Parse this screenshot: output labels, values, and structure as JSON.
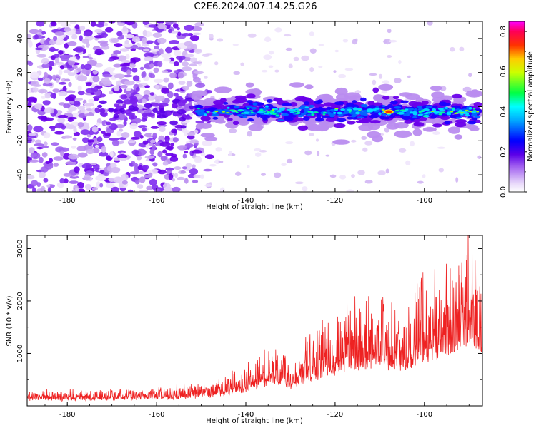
{
  "title": "C2E6.2024.007.14.25.G26",
  "chart_data": [
    {
      "type": "heatmap",
      "name": "spectrogram",
      "xlabel": "Height of straight line (km)",
      "ylabel": "Frequency (Hz)",
      "xlim": [
        -189,
        -87
      ],
      "ylim": [
        -50,
        50
      ],
      "x_ticks": [
        -180,
        -160,
        -140,
        -120,
        -100
      ],
      "x_tick_labels": [
        "-180",
        "-160",
        "-140",
        "-120",
        "-100"
      ],
      "y_ticks": [
        -40,
        -20,
        0,
        20,
        40
      ],
      "y_tick_labels": [
        "-40",
        "-20",
        "0",
        "20",
        "40"
      ],
      "colorbar": {
        "label": "Normalized spectral amplitude",
        "range": [
          0,
          0.85
        ],
        "ticks": [
          0,
          0.2,
          0.4,
          0.6,
          0.8
        ],
        "tick_labels": [
          "0.0",
          "0.2",
          "0.4",
          "0.6",
          "0.8"
        ],
        "colors": [
          "#ffffff",
          "#c39bf0",
          "#7a00e6",
          "#0000ff",
          "#00ffff",
          "#00ff00",
          "#ffff00",
          "#ff8800",
          "#ff0000",
          "#ff00ff"
        ]
      },
      "signal_band": {
        "x_start": -151,
        "x_end": -88,
        "center_frequency": -2,
        "peak_x": -108,
        "peak_frequency": -3,
        "peak_amplitude": 0.8
      },
      "noise_region": {
        "x_start": -189,
        "x_end": -150,
        "frequency_range": [
          -50,
          50
        ]
      }
    },
    {
      "type": "line",
      "name": "snr",
      "xlabel": "Height of straight line (km)",
      "ylabel": "SNR (10 * v/v)",
      "xlim": [
        -189,
        -87
      ],
      "ylim": [
        0,
        3250
      ],
      "x_ticks": [
        -180,
        -160,
        -140,
        -120,
        -100
      ],
      "x_tick_labels": [
        "-180",
        "-160",
        "-140",
        "-120",
        "-100"
      ],
      "y_ticks": [
        1000,
        2000,
        3000
      ],
      "y_tick_labels": [
        "1000",
        "2000",
        "3000"
      ],
      "color": "#ee2222",
      "envelope": {
        "x": [
          -189,
          -175,
          -160,
          -150,
          -145,
          -140,
          -135,
          -130,
          -125,
          -120,
          -115,
          -110,
          -105,
          -100,
          -95,
          -90,
          -88
        ],
        "y": [
          250,
          250,
          300,
          400,
          500,
          700,
          1000,
          900,
          1300,
          1600,
          1900,
          2000,
          1800,
          2300,
          2600,
          3200,
          2800
        ]
      }
    }
  ]
}
